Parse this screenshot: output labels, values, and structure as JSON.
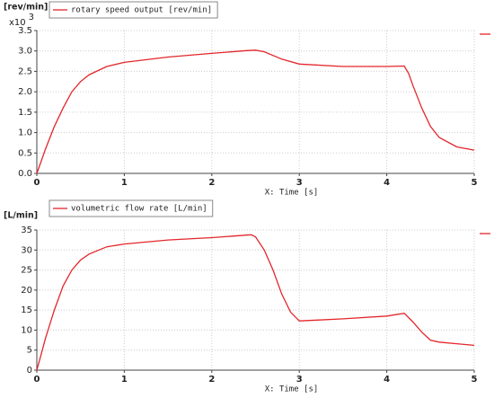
{
  "chart_data": [
    {
      "type": "line",
      "ylabel": "[rev/min]",
      "y_multiplier": "x10",
      "y_multiplier_exp": "3",
      "xlabel": "X: Time [s]",
      "x": [
        0,
        0.05,
        0.1,
        0.2,
        0.3,
        0.4,
        0.5,
        0.6,
        0.8,
        1.0,
        1.5,
        2.0,
        2.4,
        2.5,
        2.6,
        2.8,
        3.0,
        3.5,
        4.0,
        4.2,
        4.25,
        4.3,
        4.4,
        4.5,
        4.6,
        4.8,
        5.0
      ],
      "series": [
        {
          "name": "rotary speed output [rev/min]",
          "color": "#e3262b",
          "values": [
            0,
            0.3,
            0.6,
            1.15,
            1.6,
            2.0,
            2.25,
            2.42,
            2.62,
            2.72,
            2.85,
            2.94,
            3.01,
            3.02,
            2.98,
            2.8,
            2.68,
            2.62,
            2.62,
            2.63,
            2.45,
            2.15,
            1.6,
            1.15,
            0.88,
            0.65,
            0.57
          ]
        }
      ],
      "xlim": [
        0,
        5
      ],
      "xticks": [
        0,
        1,
        2,
        3,
        4,
        5
      ],
      "ylim": [
        0,
        3.5
      ],
      "yticks": [
        {
          "value": 0,
          "label": "0.0"
        },
        0.5,
        {
          "value": 1,
          "label": "1.0"
        },
        1.5,
        {
          "value": 2,
          "label": "2.0"
        },
        2.5,
        {
          "value": 3,
          "label": "3.0"
        },
        3.5
      ],
      "grid": true
    },
    {
      "type": "line",
      "ylabel": "[L/min]",
      "xlabel": "X: Time [s]",
      "x": [
        0,
        0.05,
        0.1,
        0.2,
        0.3,
        0.4,
        0.5,
        0.6,
        0.8,
        1.0,
        1.5,
        2.0,
        2.45,
        2.5,
        2.6,
        2.7,
        2.8,
        2.9,
        3.0,
        3.2,
        3.5,
        4.0,
        4.2,
        4.3,
        4.4,
        4.5,
        4.6,
        4.8,
        5.0
      ],
      "series": [
        {
          "name": "volumetric flow rate [L/min]",
          "color": "#e3262b",
          "values": [
            0,
            4,
            8,
            15,
            21,
            25,
            27.5,
            29,
            30.8,
            31.5,
            32.5,
            33.1,
            33.8,
            33.3,
            30,
            25,
            19,
            14.5,
            12.3,
            12.5,
            12.8,
            13.5,
            14.2,
            12,
            9.5,
            7.5,
            7,
            6.6,
            6.2
          ]
        }
      ],
      "xlim": [
        0,
        5
      ],
      "xticks": [
        0,
        1,
        2,
        3,
        4,
        5
      ],
      "ylim": [
        0,
        35
      ],
      "yticks": [
        0,
        5,
        10,
        15,
        20,
        25,
        30,
        35
      ],
      "grid": true
    }
  ]
}
